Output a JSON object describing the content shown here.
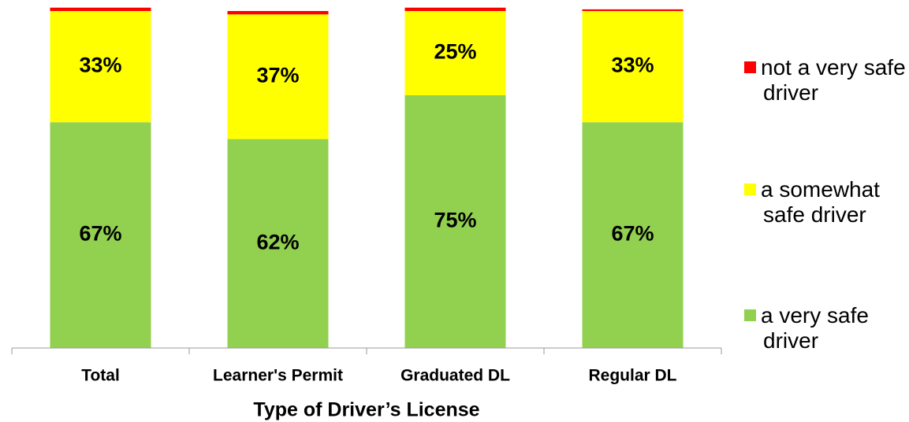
{
  "chart_data": {
    "type": "stacked_bar",
    "x_label": "Type of Driver’s License",
    "categories": [
      "Total",
      "Learner's Permit",
      "Graduated DL",
      "Regular DL"
    ],
    "series": [
      {
        "name": "a very safe driver",
        "color": "#92d050",
        "values": [
          67,
          62,
          75,
          67
        ],
        "value_labels": [
          "67%",
          "62%",
          "75%",
          "67%"
        ]
      },
      {
        "name": "a somewhat safe driver",
        "color": "#ffff00",
        "values": [
          33,
          37,
          25,
          33
        ],
        "value_labels": [
          "33%",
          "37%",
          "25%",
          "33%"
        ]
      },
      {
        "name": "not a very safe driver",
        "color": "#ff0000",
        "values": [
          1,
          1,
          1,
          0.5
        ]
      }
    ],
    "ylim": [
      0,
      100
    ]
  }
}
